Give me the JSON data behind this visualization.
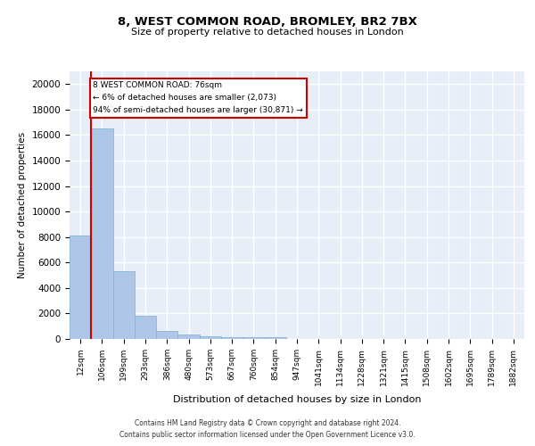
{
  "title1": "8, WEST COMMON ROAD, BROMLEY, BR2 7BX",
  "title2": "Size of property relative to detached houses in London",
  "xlabel": "Distribution of detached houses by size in London",
  "ylabel": "Number of detached properties",
  "bar_color": "#aec6e8",
  "bar_edge_color": "#7aafd4",
  "background_color": "#e8eef8",
  "grid_color": "#ffffff",
  "bins": [
    "12sqm",
    "106sqm",
    "199sqm",
    "293sqm",
    "386sqm",
    "480sqm",
    "573sqm",
    "667sqm",
    "760sqm",
    "854sqm",
    "947sqm",
    "1041sqm",
    "1134sqm",
    "1228sqm",
    "1321sqm",
    "1415sqm",
    "1508sqm",
    "1602sqm",
    "1695sqm",
    "1789sqm",
    "1882sqm"
  ],
  "values": [
    8100,
    16500,
    5300,
    1800,
    650,
    350,
    200,
    150,
    130,
    120,
    0,
    0,
    0,
    0,
    0,
    0,
    0,
    0,
    0,
    0,
    0
  ],
  "ylim": [
    0,
    21000
  ],
  "yticks": [
    0,
    2000,
    4000,
    6000,
    8000,
    10000,
    12000,
    14000,
    16000,
    18000,
    20000
  ],
  "property_line_x": 0.5,
  "annotation_line1": "8 WEST COMMON ROAD: 76sqm",
  "annotation_line2": "← 6% of detached houses are smaller (2,073)",
  "annotation_line3": "94% of semi-detached houses are larger (30,871) →",
  "annotation_color": "#cc0000",
  "footer1": "Contains HM Land Registry data © Crown copyright and database right 2024.",
  "footer2": "Contains public sector information licensed under the Open Government Licence v3.0."
}
